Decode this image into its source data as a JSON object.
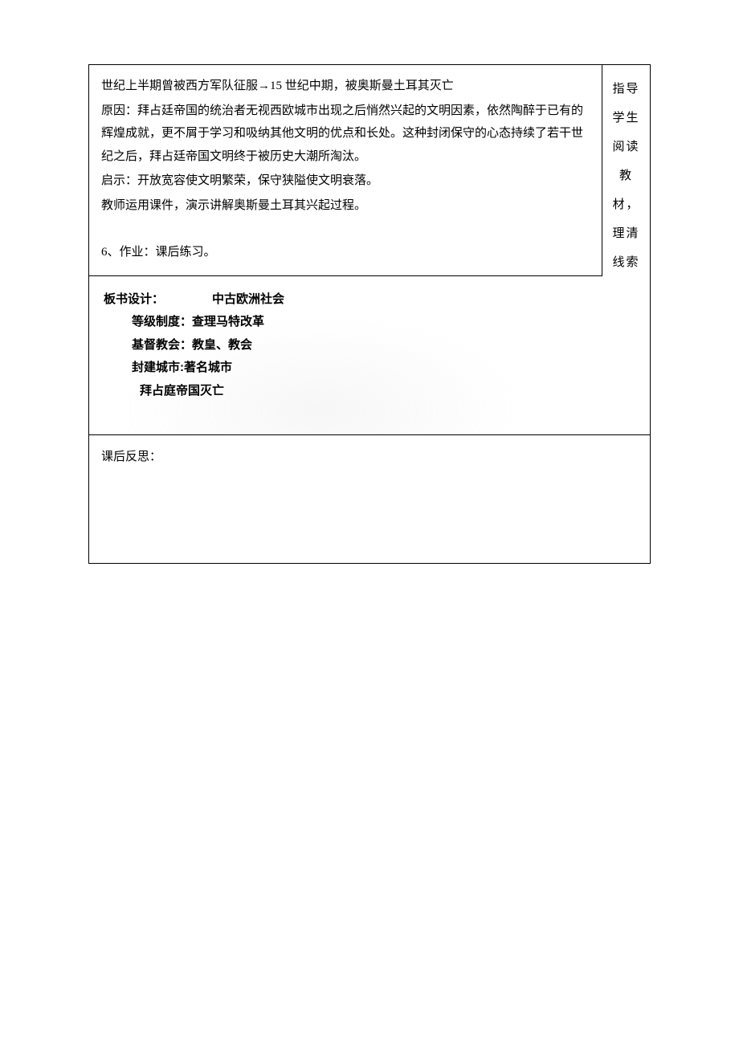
{
  "main": {
    "line1": "世纪上半期曾被西方军队征服→15 世纪中期，被奥斯曼土耳其灭亡",
    "reason_label": "原因：",
    "reason_text": "拜占廷帝国的统治者无视西欧城市出现之后悄然兴起的文明因素，依然陶醉于已有的辉煌成就，更不屑于学习和吸纳其他文明的优点和长处。这种封闭保守的心态持续了若干世纪之后，拜占廷帝国文明终于被历史大潮所淘汰。",
    "insight_label": "启示：",
    "insight_text": "开放宽容使文明繁荣，保守狭隘使文明衰落。",
    "teacher_note": "教师运用课件，演示讲解奥斯曼土耳其兴起过程。",
    "homework": "6、作业：课后练习。"
  },
  "sidebar": {
    "text": "指导学生阅读教材，理清线索"
  },
  "board": {
    "title_label": "板书设计：",
    "title": "中古欧洲社会",
    "item1": "等级制度：查理马特改革",
    "item2": "基督教会：教皇、教会",
    "item3": "封建城市:著名城市",
    "item4": "拜占庭帝国灭亡"
  },
  "reflection": {
    "label": "课后反思："
  },
  "colors": {
    "border": "#000000",
    "background": "#ffffff",
    "text": "#000000"
  },
  "typography": {
    "body_font": "SimSun",
    "bold_font": "SimHei",
    "body_fontsize": 15,
    "line_height": 1.9
  }
}
